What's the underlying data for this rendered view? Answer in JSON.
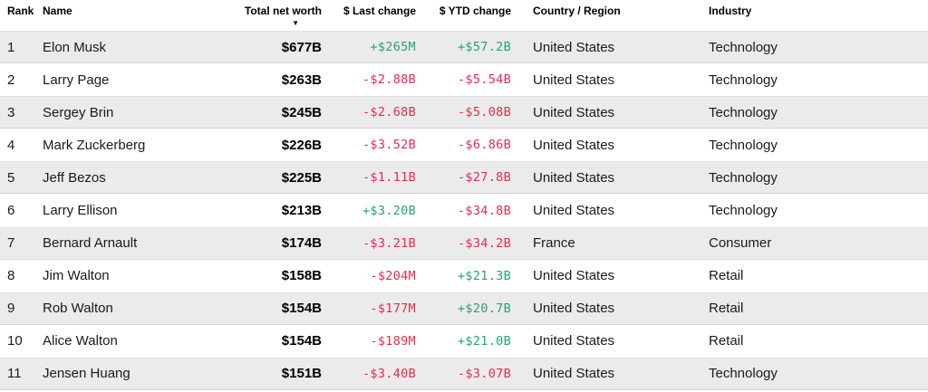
{
  "colors": {
    "positive": "#27a36e",
    "negative": "#e02c50",
    "stripe": "#ebebeb",
    "text": "#1a1a1a"
  },
  "icons": {
    "sort_desc": "▼"
  },
  "table": {
    "columns": [
      {
        "key": "rank",
        "label": "Rank",
        "align": "left"
      },
      {
        "key": "name",
        "label": "Name",
        "align": "left"
      },
      {
        "key": "net_worth",
        "label": "Total net worth",
        "align": "right",
        "sorted": "desc"
      },
      {
        "key": "last_change",
        "label": "$ Last change",
        "align": "right"
      },
      {
        "key": "ytd_change",
        "label": "$ YTD change",
        "align": "right"
      },
      {
        "key": "country",
        "label": "Country / Region",
        "align": "left"
      },
      {
        "key": "industry",
        "label": "Industry",
        "align": "left"
      }
    ],
    "rows": [
      {
        "rank": "1",
        "name": "Elon Musk",
        "net_worth": "$677B",
        "last_change": "+$265M",
        "ytd_change": "+$57.2B",
        "country": "United States",
        "industry": "Technology"
      },
      {
        "rank": "2",
        "name": "Larry Page",
        "net_worth": "$263B",
        "last_change": "-$2.88B",
        "ytd_change": "-$5.54B",
        "country": "United States",
        "industry": "Technology"
      },
      {
        "rank": "3",
        "name": "Sergey Brin",
        "net_worth": "$245B",
        "last_change": "-$2.68B",
        "ytd_change": "-$5.08B",
        "country": "United States",
        "industry": "Technology"
      },
      {
        "rank": "4",
        "name": "Mark Zuckerberg",
        "net_worth": "$226B",
        "last_change": "-$3.52B",
        "ytd_change": "-$6.86B",
        "country": "United States",
        "industry": "Technology"
      },
      {
        "rank": "5",
        "name": "Jeff Bezos",
        "net_worth": "$225B",
        "last_change": "-$1.11B",
        "ytd_change": "-$27.8B",
        "country": "United States",
        "industry": "Technology"
      },
      {
        "rank": "6",
        "name": "Larry Ellison",
        "net_worth": "$213B",
        "last_change": "+$3.20B",
        "ytd_change": "-$34.8B",
        "country": "United States",
        "industry": "Technology"
      },
      {
        "rank": "7",
        "name": "Bernard Arnault",
        "net_worth": "$174B",
        "last_change": "-$3.21B",
        "ytd_change": "-$34.2B",
        "country": "France",
        "industry": "Consumer"
      },
      {
        "rank": "8",
        "name": "Jim Walton",
        "net_worth": "$158B",
        "last_change": "-$204M",
        "ytd_change": "+$21.3B",
        "country": "United States",
        "industry": "Retail"
      },
      {
        "rank": "9",
        "name": "Rob Walton",
        "net_worth": "$154B",
        "last_change": "-$177M",
        "ytd_change": "+$20.7B",
        "country": "United States",
        "industry": "Retail"
      },
      {
        "rank": "10",
        "name": "Alice Walton",
        "net_worth": "$154B",
        "last_change": "-$189M",
        "ytd_change": "+$21.0B",
        "country": "United States",
        "industry": "Retail"
      },
      {
        "rank": "11",
        "name": "Jensen Huang",
        "net_worth": "$151B",
        "last_change": "-$3.40B",
        "ytd_change": "-$3.07B",
        "country": "United States",
        "industry": "Technology"
      }
    ]
  }
}
